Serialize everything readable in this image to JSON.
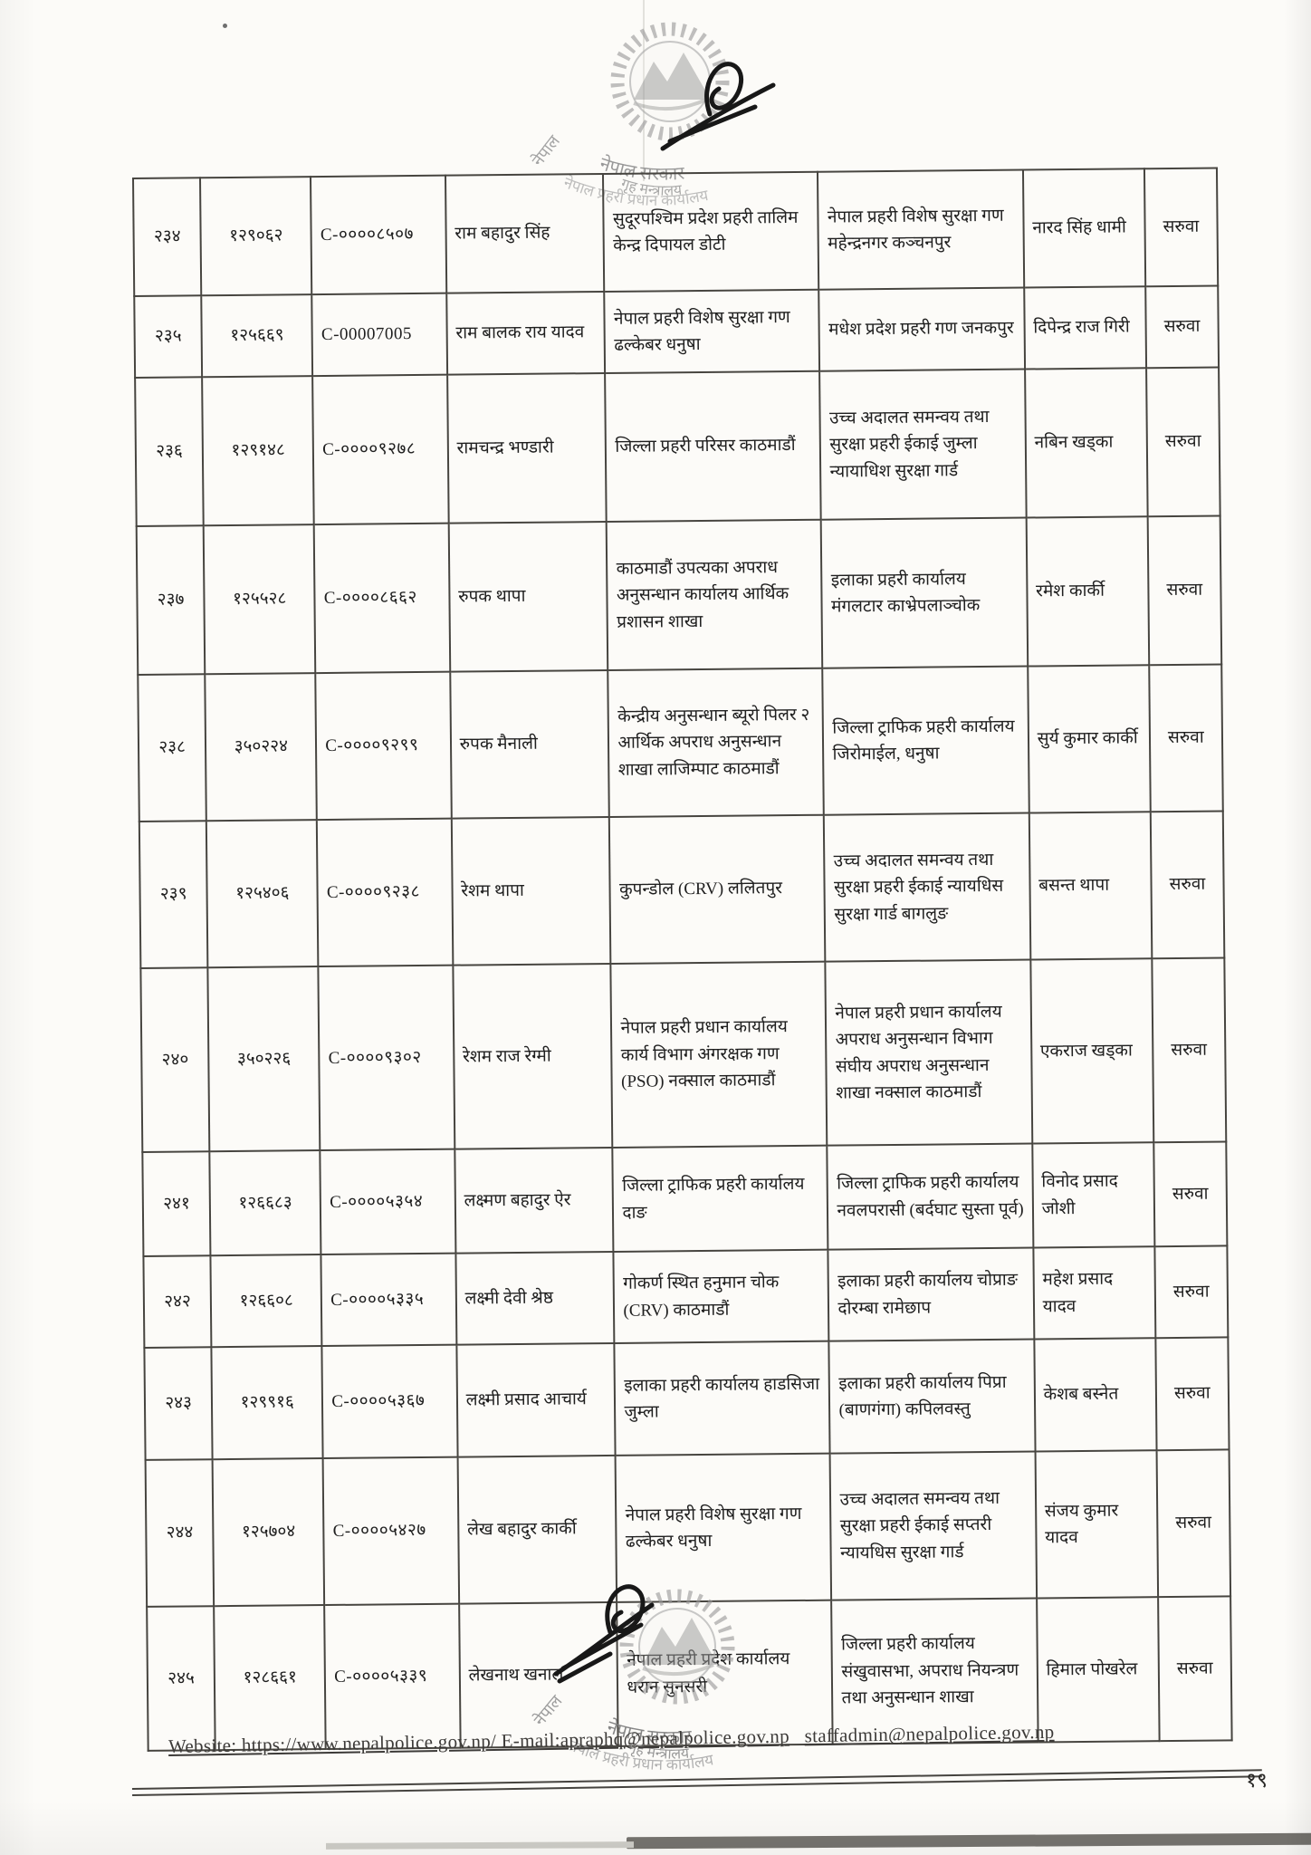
{
  "colors": {
    "ink": "#1f1f1f",
    "table_line": "#474540",
    "stamp_gray": "#9a9a9a",
    "signature_ink": "#181818",
    "paper": "#fcfbf8"
  },
  "emblem": {
    "gov_line1": "नेपाल सरकार",
    "gov_line2": "गृह मन्त्रालय",
    "stamp_arc_bottom": "नेपाल प्रहरी प्रधान कार्यालय",
    "stamp_side_word": "नेपाल"
  },
  "table": {
    "columns": [
      "sn",
      "reg_no",
      "code_no",
      "name",
      "current_office",
      "new_office",
      "approver",
      "action"
    ],
    "rows": [
      {
        "sn": "२३४",
        "reg_no": "१२९०६२",
        "code_no": "C-००००८५०७",
        "name": "राम बहादुर सिंह",
        "current_office": "सुदूरपश्चिम प्रदेश प्रहरी तालिम केन्द्र दिपायल डोटी",
        "new_office": "नेपाल प्रहरी विशेष सुरक्षा गण महेन्द्रनगर कञ्चनपुर",
        "approver": "नारद सिंह धामी",
        "action": "सरुवा"
      },
      {
        "sn": "२३५",
        "reg_no": "१२५६६९",
        "code_no": "C-00007005",
        "name": "राम बालक राय यादव",
        "current_office": "नेपाल प्रहरी विशेष सुरक्षा गण ढल्केबर धनुषा",
        "new_office": "मधेश प्रदेश प्रहरी गण जनकपुर",
        "approver": "दिपेन्द्र राज गिरी",
        "action": "सरुवा"
      },
      {
        "sn": "२३६",
        "reg_no": "१२९१४८",
        "code_no": "C-००००९२७८",
        "name": "रामचन्द्र भण्डारी",
        "current_office": "जिल्ला प्रहरी परिसर काठमाडौं",
        "new_office": "उच्च अदालत समन्वय तथा सुरक्षा प्रहरी ईकाई जुम्ला न्यायाधिश सुरक्षा गार्ड",
        "approver": "नबिन खड्का",
        "action": "सरुवा"
      },
      {
        "sn": "२३७",
        "reg_no": "१२५५२८",
        "code_no": "C-००००८६६२",
        "name": "रुपक थापा",
        "current_office": "काठमाडौं उपत्यका अपराध अनुसन्धान कार्यालय आर्थिक प्रशासन शाखा",
        "new_office": "इलाका प्रहरी कार्यालय मंगलटार काभ्रेपलाञ्चोक",
        "approver": "रमेश कार्की",
        "action": "सरुवा"
      },
      {
        "sn": "२३८",
        "reg_no": "३५०२२४",
        "code_no": "C-००००९२९९",
        "name": "रुपक मैनाली",
        "current_office": "केन्द्रीय अनुसन्धान ब्यूरो पिलर २ आर्थिक अपराध अनुसन्धान शाखा लाजिम्पाट काठमाडौं",
        "new_office": "जिल्ला ट्राफिक प्रहरी कार्यालय जिरोमाईल, धनुषा",
        "approver": "सुर्य कुमार कार्की",
        "action": "सरुवा"
      },
      {
        "sn": "२३९",
        "reg_no": "१२५४०६",
        "code_no": "C-००००९२३८",
        "name": "रेशम थापा",
        "current_office": "कुपन्डोल (CRV) ललितपुर",
        "new_office": "उच्च अदालत समन्वय तथा सुरक्षा प्रहरी ईकाई न्यायधिस सुरक्षा गार्ड बागलुङ",
        "approver": "बसन्त थापा",
        "action": "सरुवा"
      },
      {
        "sn": "२४०",
        "reg_no": "३५०२२६",
        "code_no": "C-००००९३०२",
        "name": "रेशम राज रेग्मी",
        "current_office": "नेपाल प्रहरी प्रधान कार्यालय कार्य विभाग अंगरक्षक गण (PSO) नक्साल काठमाडौं",
        "new_office": "नेपाल प्रहरी प्रधान कार्यालय अपराध अनुसन्धान विभाग संघीय अपराध अनुसन्धान शाखा नक्साल काठमाडौं",
        "approver": "एकराज खड्का",
        "action": "सरुवा"
      },
      {
        "sn": "२४१",
        "reg_no": "१२६६८३",
        "code_no": "C-००००५३५४",
        "name": "लक्ष्मण बहादुर ऐर",
        "current_office": "जिल्ला ट्राफिक प्रहरी कार्यालय दाङ",
        "new_office": "जिल्ला ट्राफिक प्रहरी कार्यालय नवलपरासी (बर्दघाट सुस्ता पूर्व)",
        "approver": "विनोद प्रसाद जोशी",
        "action": "सरुवा"
      },
      {
        "sn": "२४२",
        "reg_no": "१२६६०८",
        "code_no": "C-००००५३३५",
        "name": "लक्ष्मी देवी श्रेष्ठ",
        "current_office": "गोकर्ण स्थित हनुमान चोक (CRV) काठमाडौं",
        "new_office": "इलाका प्रहरी कार्यालय चोप्राङ दोरम्बा रामेछाप",
        "approver": "महेश प्रसाद यादव",
        "action": "सरुवा"
      },
      {
        "sn": "२४३",
        "reg_no": "१२९९१६",
        "code_no": "C-००००५३६७",
        "name": "लक्ष्मी प्रसाद आचार्य",
        "current_office": "इलाका प्रहरी कार्यालय हाडसिजा जुम्ला",
        "new_office": "इलाका प्रहरी कार्यालय पिप्रा (बाणगंगा) कपिलवस्तु",
        "approver": "केशब बस्नेत",
        "action": "सरुवा"
      },
      {
        "sn": "२४४",
        "reg_no": "१२५७०४",
        "code_no": "C-००००५४२७",
        "name": "लेख बहादुर कार्की",
        "current_office": "नेपाल प्रहरी विशेष सुरक्षा गण ढल्केबर धनुषा",
        "new_office": "उच्च अदालत समन्वय तथा सुरक्षा प्रहरी ईकाई सप्तरी न्यायधिस सुरक्षा गार्ड",
        "approver": "संजय कुमार यादव",
        "action": "सरुवा"
      },
      {
        "sn": "२४५",
        "reg_no": "१२८६६१",
        "code_no": "C-००००५३३९",
        "name": "लेखनाथ खनाल",
        "current_office": "नेपाल प्रहरी प्रदेश कार्यालय धरान सुनसरी",
        "new_office": "जिल्ला प्रहरी कार्यालय संखुवासभा, अपराध नियन्त्रण तथा अनुसन्धान शाखा",
        "approver": "हिमाल पोखरेल",
        "action": "सरुवा"
      }
    ]
  },
  "footer": {
    "website_email_text": "Website: https://www.nepalpolice.gov.np/ E-mail:apraphq@nepalpolice.gov.np",
    "staff_email": "staffadmin@nepalpolice.gov.np",
    "page_number": "१९"
  }
}
